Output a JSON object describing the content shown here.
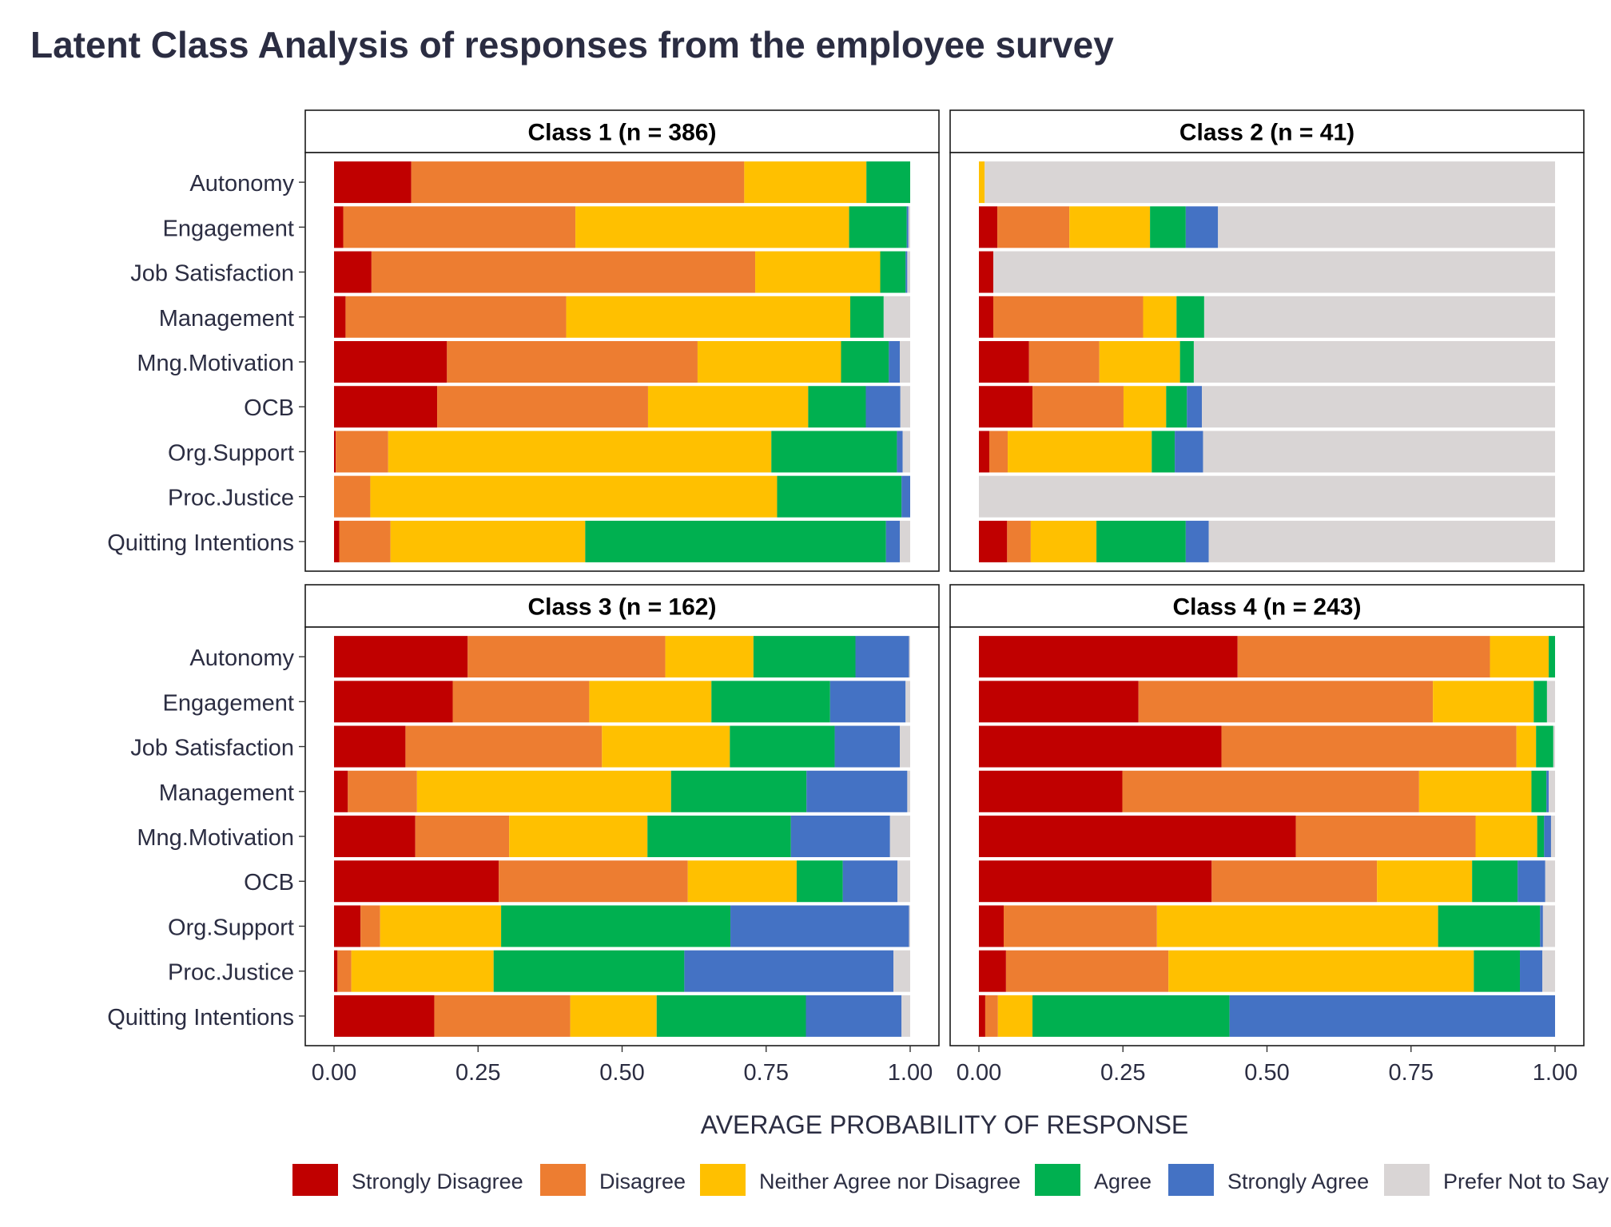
{
  "chart_data": {
    "type": "bar",
    "orientation": "horizontal",
    "stacked": true,
    "title": "Latent Class Analysis of responses from the employee survey",
    "xlabel": "AVERAGE PROBABILITY OF RESPONSE",
    "ylabel": "",
    "xlim": [
      0,
      1
    ],
    "x_ticks": [
      "0.00",
      "0.25",
      "0.50",
      "0.75",
      "1.00"
    ],
    "grid": false,
    "legend_position": "bottom",
    "categories": [
      "Autonomy",
      "Engagement",
      "Job Satisfaction",
      "Management",
      "Mng.Motivation",
      "OCB",
      "Org.Support",
      "Proc.Justice",
      "Quitting Intentions"
    ],
    "responses": [
      {
        "name": "Strongly Disagree",
        "color": "#c00000"
      },
      {
        "name": "Disagree",
        "color": "#ed7d31"
      },
      {
        "name": "Neither Agree nor Disagree",
        "color": "#ffc000"
      },
      {
        "name": "Agree",
        "color": "#00b050"
      },
      {
        "name": "Strongly Agree",
        "color": "#4472c4"
      },
      {
        "name": "Prefer Not to Say",
        "color": "#d9d5d5"
      }
    ],
    "panels": [
      {
        "label": "Class 1 (n = 386)",
        "values": [
          [
            0.134,
            0.578,
            0.212,
            0.076,
            0.0,
            0.0
          ],
          [
            0.016,
            0.403,
            0.475,
            0.1,
            0.003,
            0.003
          ],
          [
            0.065,
            0.666,
            0.217,
            0.044,
            0.003,
            0.005
          ],
          [
            0.02,
            0.383,
            0.493,
            0.058,
            0.0,
            0.046
          ],
          [
            0.196,
            0.435,
            0.249,
            0.083,
            0.019,
            0.018
          ],
          [
            0.179,
            0.366,
            0.278,
            0.1,
            0.06,
            0.017
          ],
          [
            0.003,
            0.091,
            0.665,
            0.218,
            0.01,
            0.013
          ],
          [
            0.0,
            0.063,
            0.706,
            0.216,
            0.015,
            0.0
          ],
          [
            0.009,
            0.089,
            0.338,
            0.522,
            0.024,
            0.018
          ]
        ]
      },
      {
        "label": "Class 2 (n = 41)",
        "values": [
          [
            0.0,
            0.0,
            0.01,
            0.0,
            0.0,
            0.99
          ],
          [
            0.032,
            0.125,
            0.14,
            0.062,
            0.056,
            0.585
          ],
          [
            0.025,
            0.0,
            0.0,
            0.0,
            0.0,
            0.975
          ],
          [
            0.025,
            0.26,
            0.058,
            0.048,
            0.0,
            0.609
          ],
          [
            0.087,
            0.122,
            0.14,
            0.024,
            0.0,
            0.627
          ],
          [
            0.093,
            0.158,
            0.074,
            0.036,
            0.026,
            0.613
          ],
          [
            0.018,
            0.032,
            0.25,
            0.04,
            0.049,
            0.611
          ],
          [
            0.0,
            0.0,
            0.0,
            0.0,
            0.0,
            1.0
          ],
          [
            0.049,
            0.041,
            0.114,
            0.155,
            0.04,
            0.601
          ]
        ]
      },
      {
        "label": "Class 3 (n = 162)",
        "values": [
          [
            0.232,
            0.343,
            0.153,
            0.177,
            0.093,
            0.002
          ],
          [
            0.206,
            0.237,
            0.212,
            0.206,
            0.131,
            0.008
          ],
          [
            0.124,
            0.341,
            0.222,
            0.182,
            0.113,
            0.018
          ],
          [
            0.024,
            0.12,
            0.441,
            0.235,
            0.175,
            0.005
          ],
          [
            0.141,
            0.163,
            0.24,
            0.249,
            0.172,
            0.035
          ],
          [
            0.286,
            0.328,
            0.189,
            0.08,
            0.095,
            0.022
          ],
          [
            0.046,
            0.034,
            0.21,
            0.398,
            0.31,
            0.002
          ],
          [
            0.006,
            0.024,
            0.247,
            0.331,
            0.363,
            0.029
          ],
          [
            0.174,
            0.236,
            0.15,
            0.259,
            0.166,
            0.015
          ]
        ]
      },
      {
        "label": "Class 4 (n = 243)",
        "values": [
          [
            0.449,
            0.438,
            0.102,
            0.011,
            0.0,
            0.0
          ],
          [
            0.277,
            0.511,
            0.175,
            0.023,
            0.0,
            0.014
          ],
          [
            0.421,
            0.512,
            0.034,
            0.03,
            0.0,
            0.003
          ],
          [
            0.249,
            0.515,
            0.195,
            0.026,
            0.004,
            0.011
          ],
          [
            0.55,
            0.312,
            0.107,
            0.012,
            0.012,
            0.007
          ],
          [
            0.404,
            0.287,
            0.165,
            0.079,
            0.048,
            0.017
          ],
          [
            0.043,
            0.266,
            0.488,
            0.177,
            0.005,
            0.021
          ],
          [
            0.047,
            0.282,
            0.53,
            0.08,
            0.039,
            0.022
          ],
          [
            0.011,
            0.022,
            0.06,
            0.342,
            0.565,
            0.0
          ]
        ]
      }
    ]
  }
}
